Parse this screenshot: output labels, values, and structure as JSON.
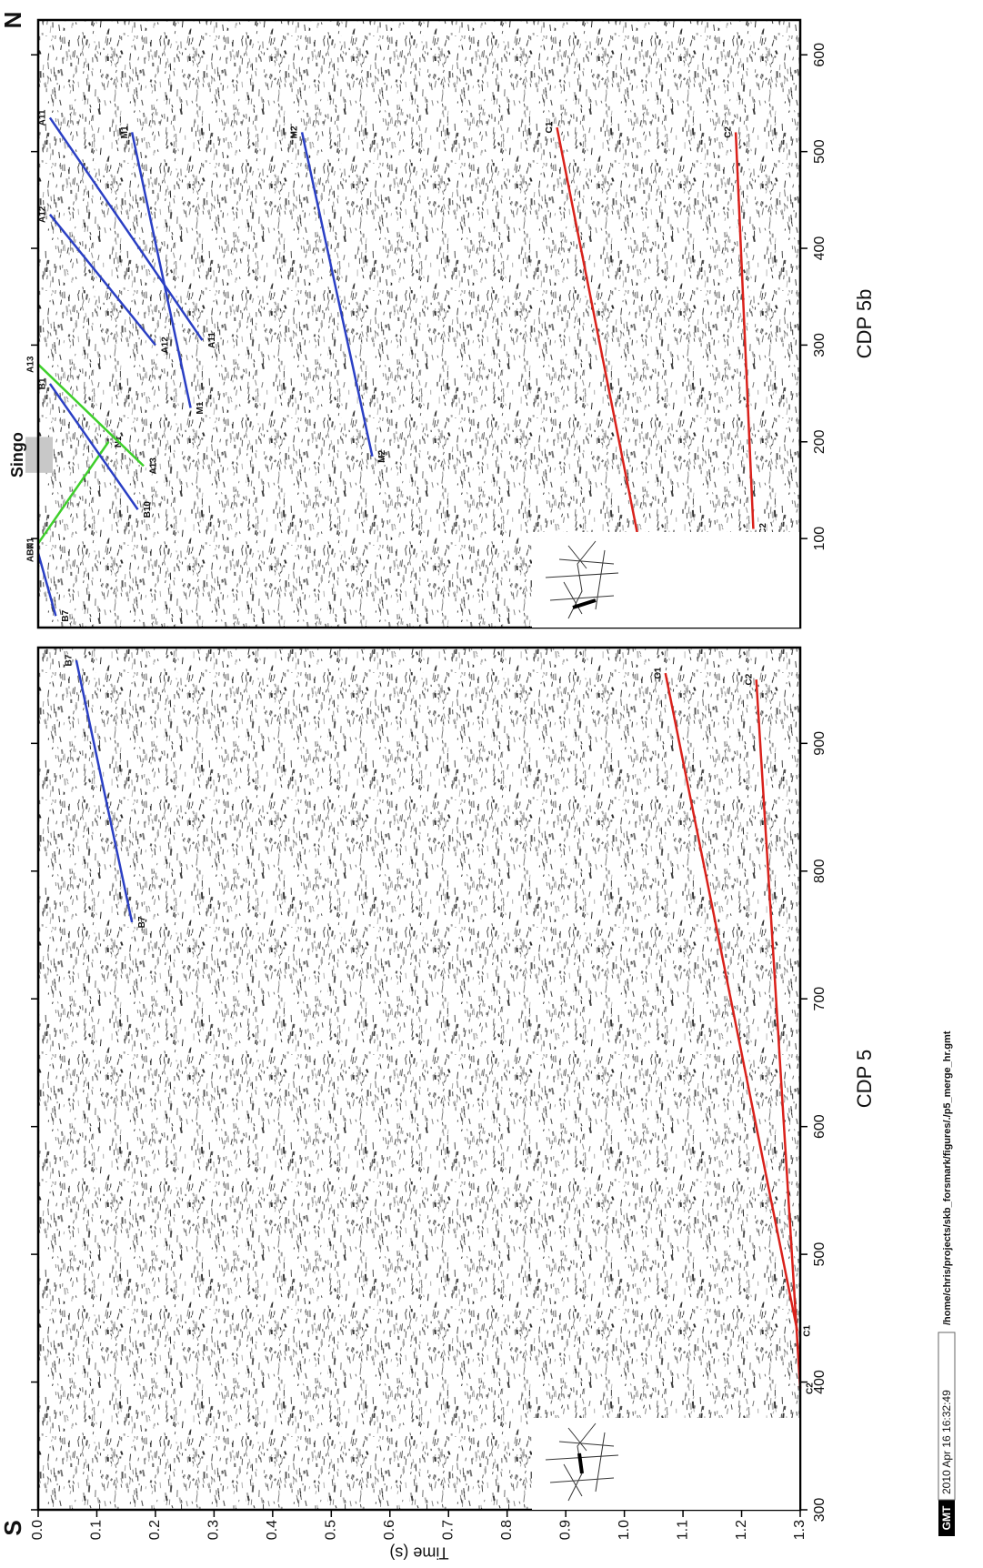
{
  "chart_data": [
    {
      "type": "line",
      "title": "CDP 5",
      "corner_label": "S",
      "ylabel": "Time (s)",
      "xlim": [
        300,
        975
      ],
      "ylim": [
        0,
        1.3
      ],
      "xticks": [
        300,
        400,
        500,
        600,
        700,
        800,
        900
      ],
      "yticks": [
        {
          "value": 0,
          "label": "0.0"
        },
        0.1,
        0.2,
        0.3,
        0.4,
        0.5,
        0.6,
        0.7,
        0.8,
        0.9,
        {
          "value": 1,
          "label": "1.0"
        },
        1.1,
        1.2,
        1.3
      ],
      "series": [
        {
          "color": "#2a3fc4",
          "labels": [
            "B7",
            "B7"
          ],
          "x": [
            965,
            760
          ],
          "values": [
            0.065,
            0.16
          ]
        },
        {
          "color": "#d9211b",
          "labels": [
            "C1",
            "C1"
          ],
          "x": [
            955,
            440
          ],
          "values": [
            1.07,
            1.295
          ]
        },
        {
          "color": "#d9211b",
          "labels": [
            "C2",
            "C2"
          ],
          "x": [
            950,
            395
          ],
          "values": [
            1.225,
            1.3
          ]
        }
      ]
    },
    {
      "type": "line",
      "title": "CDP 5b",
      "corner_label": "N",
      "xlim": [
        8,
        636
      ],
      "ylim": [
        0,
        1.3
      ],
      "xticks": [
        100,
        200,
        300,
        400,
        500,
        600
      ],
      "annotation": {
        "text": "Singo",
        "x": [
          168,
          205
        ]
      },
      "series": [
        {
          "color": "#2a3fc4",
          "labels": [
            "B7",
            "AB7"
          ],
          "x": [
            20,
            85
          ],
          "values": [
            0.03,
            0.0
          ]
        },
        {
          "color": "#3ecf2b",
          "labels": [
            "N1",
            "N1"
          ],
          "x": [
            95,
            200
          ],
          "values": [
            0.0,
            0.12
          ]
        },
        {
          "color": "#3ecf2b",
          "labels": [
            "A13",
            "A13"
          ],
          "x": [
            280,
            175
          ],
          "values": [
            0.0,
            0.18
          ]
        },
        {
          "color": "#2a3fc4",
          "labels": [
            "B1",
            "B10"
          ],
          "x": [
            260,
            130
          ],
          "values": [
            0.02,
            0.17
          ]
        },
        {
          "color": "#2a3fc4",
          "labels": [
            "A11",
            "A11"
          ],
          "x": [
            535,
            305
          ],
          "values": [
            0.02,
            0.28
          ]
        },
        {
          "color": "#2a3fc4",
          "labels": [
            "A12",
            "A12"
          ],
          "x": [
            435,
            300
          ],
          "values": [
            0.02,
            0.2
          ]
        },
        {
          "color": "#2a3fc4",
          "labels": [
            "M1",
            "M1"
          ],
          "x": [
            520,
            235
          ],
          "values": [
            0.16,
            0.26
          ]
        },
        {
          "color": "#2a3fc4",
          "labels": [
            "M2",
            "M2"
          ],
          "x": [
            520,
            185
          ],
          "values": [
            0.45,
            0.57
          ]
        },
        {
          "color": "#d9211b",
          "labels": [
            "C1",
            "C1"
          ],
          "x": [
            20,
            525
          ],
          "values": [
            1.05,
            0.885
          ]
        },
        {
          "color": "#d9211b",
          "labels": [
            "C2",
            "C2"
          ],
          "x": [
            110,
            520
          ],
          "values": [
            1.22,
            1.19
          ]
        }
      ]
    }
  ],
  "footer": {
    "logo": "GMT",
    "timestamp": "2010 Apr 16 16:32:49",
    "path": "/home/chris/projects/skb_forsmark/figures/./p5_merge_hr.gmt"
  }
}
